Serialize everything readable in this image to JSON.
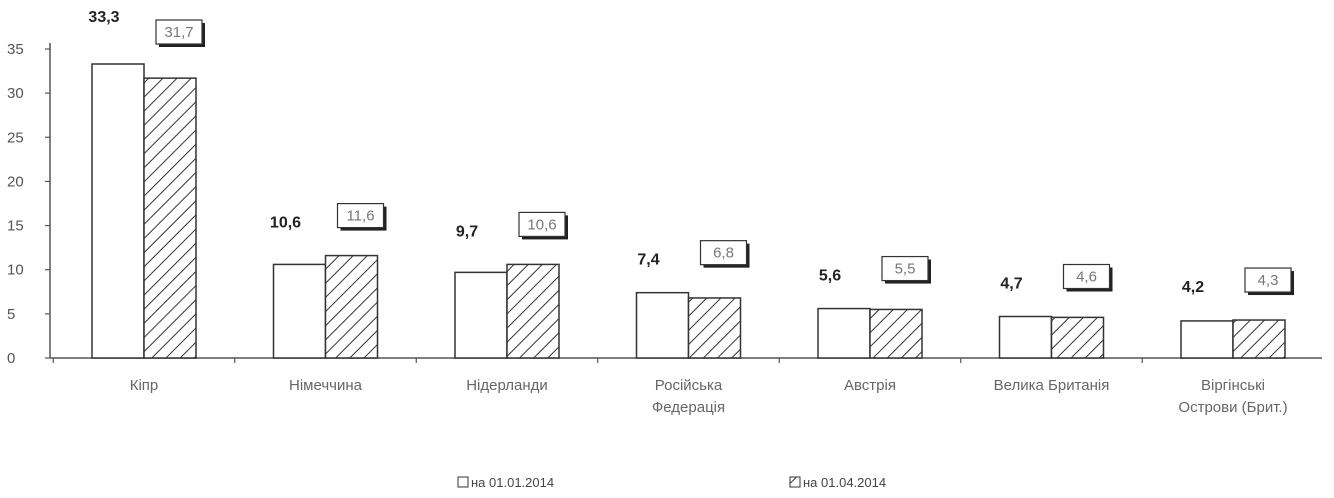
{
  "chart_data": {
    "type": "bar",
    "categories": [
      [
        "Кіпр"
      ],
      [
        "Німеччина"
      ],
      [
        "Нідерланди"
      ],
      [
        "Російська",
        "Федерація"
      ],
      [
        "Австрія"
      ],
      [
        "Велика Британія"
      ],
      [
        "Віргінські",
        "Острови (Брит.)"
      ]
    ],
    "series": [
      {
        "name": "на 01.01.2014",
        "values": [
          33.3,
          10.6,
          9.7,
          7.4,
          5.6,
          4.7,
          4.2
        ],
        "labels": [
          "33,3",
          "10,6",
          "9,7",
          "7,4",
          "5,6",
          "4,7",
          "4,2"
        ],
        "pattern": "plain"
      },
      {
        "name": "на 01.04.2014",
        "values": [
          31.7,
          11.6,
          10.6,
          6.8,
          5.5,
          4.6,
          4.3
        ],
        "labels": [
          "31,7",
          "11,6",
          "10,6",
          "6,8",
          "5,5",
          "4,6",
          "4,3"
        ],
        "pattern": "hatched"
      }
    ],
    "yticks": [
      "0",
      "5",
      "10",
      "15",
      "20",
      "25",
      "30",
      "35"
    ],
    "ylim": [
      0,
      35
    ],
    "legend_position": "bottom",
    "grid": false,
    "colors": {
      "bar_fill": "#ffffff",
      "bar_stroke": "#333333",
      "hatch": "#333333",
      "axis": "#555555"
    }
  }
}
